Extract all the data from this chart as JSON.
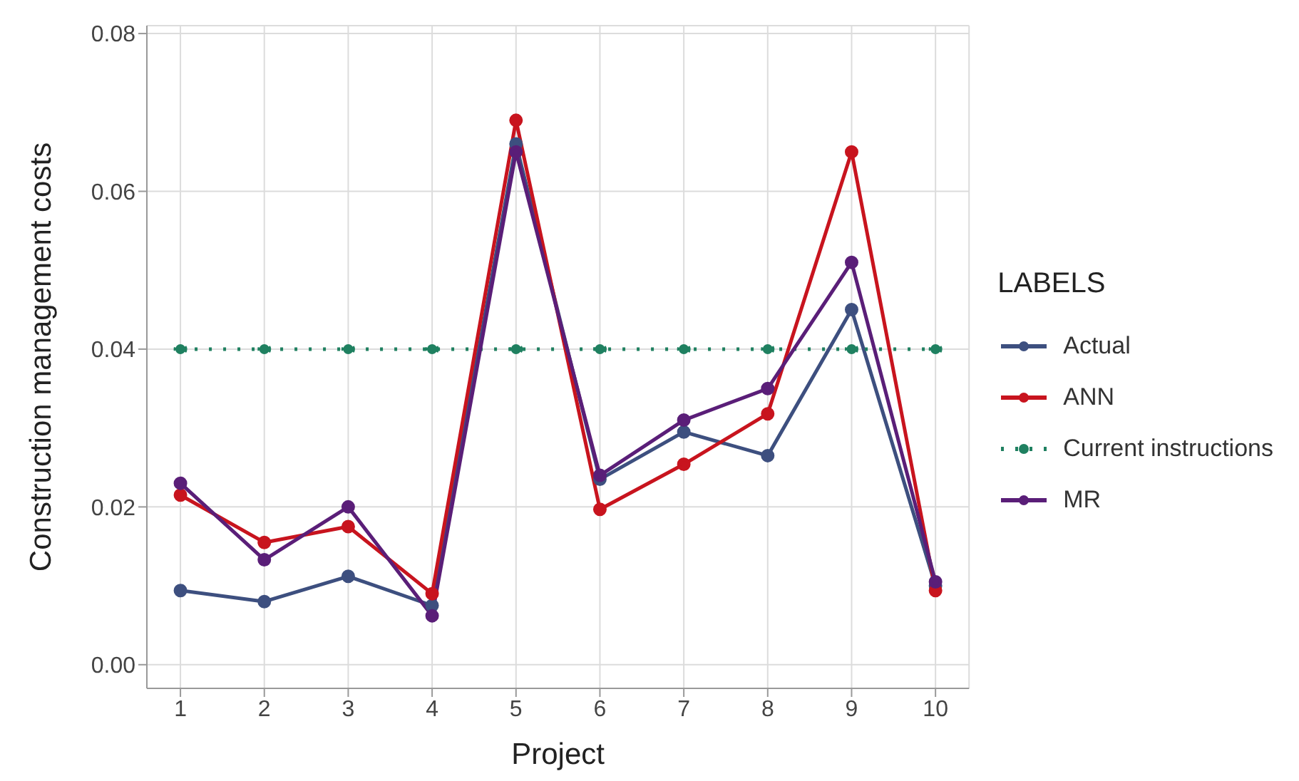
{
  "chart_data": {
    "type": "line",
    "xlabel": "Project",
    "ylabel": "Construction management costs",
    "legend_title": "LABELS",
    "legend": "right",
    "grid": true,
    "marker": "circle",
    "categories": [
      "1",
      "2",
      "3",
      "4",
      "5",
      "6",
      "7",
      "8",
      "9",
      "10"
    ],
    "ylim": [
      -0.003,
      0.081
    ],
    "yticks": [
      {
        "value": 0,
        "label": "0.00"
      },
      {
        "value": 0.02,
        "label": "0.02"
      },
      {
        "value": 0.04,
        "label": "0.04"
      },
      {
        "value": 0.06,
        "label": "0.06"
      },
      {
        "value": 0.08,
        "label": "0.08"
      }
    ],
    "series": [
      {
        "name": "Actual",
        "color": "#3d4f7f",
        "line_style": "solid",
        "values": [
          0.0094,
          0.008,
          0.0112,
          0.0075,
          0.066,
          0.0235,
          0.0295,
          0.0265,
          0.045,
          0.01
        ]
      },
      {
        "name": "ANN",
        "color": "#c8141e",
        "line_style": "solid",
        "values": [
          0.0215,
          0.0155,
          0.0175,
          0.009,
          0.069,
          0.0197,
          0.0254,
          0.0318,
          0.065,
          0.0094
        ]
      },
      {
        "name": "Current instructions",
        "color": "#1f8060",
        "line_style": "dotted",
        "values": [
          0.04,
          0.04,
          0.04,
          0.04,
          0.04,
          0.04,
          0.04,
          0.04,
          0.04,
          0.04
        ]
      },
      {
        "name": "MR",
        "color": "#5a1e78",
        "line_style": "solid",
        "values": [
          0.023,
          0.0133,
          0.02,
          0.0062,
          0.065,
          0.024,
          0.031,
          0.035,
          0.051,
          0.0105
        ]
      }
    ]
  }
}
